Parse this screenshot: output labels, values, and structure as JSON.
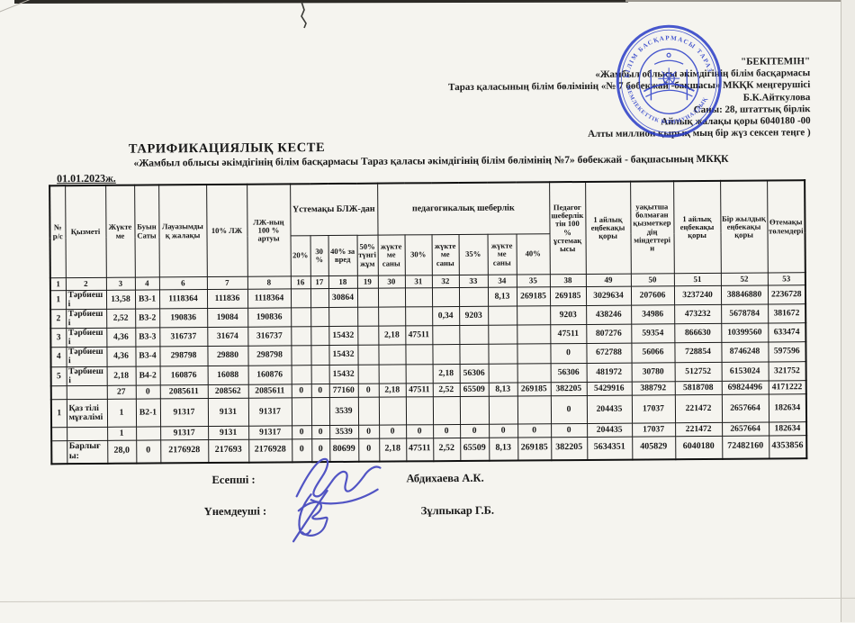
{
  "approval": {
    "lines": [
      "\"БЕКІТЕМІН\"",
      "«Жамбыл облысы әкімдігінің білім басқармасы",
      "Тараз қаласының  білім бөлімінің «№ 7 бөбекжай -бақшасы»  МКҚК меңгерушісі",
      "Б.К.Айткулова",
      "Саны: 28,    штаттық бірлік",
      "Айлық жалақы қоры 6040180  -00",
      "Алты миллион қырық мың бір жүз сексен теңге  )"
    ]
  },
  "stamp": {
    "ring_text_top": "БІЛІМ БАСҚАРМАСЫ ТАРАЗ",
    "ring_text_bottom": "МЕМЛЕКЕТТІК КОММУНАЛДЫҚ",
    "color": "#2b3ec8"
  },
  "title": "ТАРИФИКАЦИЯЛЫҚ КЕСТЕ",
  "subtitle": "«Жамбыл облысы әкімдігінің білім басқармасы  Тараз қаласы әкімдігінің білім бөлімінің №7» бөбекжай - бақшасының МКҚК",
  "date": "01.01.2023ж.",
  "table": {
    "group_headers": {
      "num": "№ р/с",
      "position": "Қызметі",
      "load": "Жүктеме",
      "category": "Буын Саты",
      "salary": "Лауазымдық жалақы",
      "ten_pct": "10% ЛЖ",
      "lj_100": "ЛЖ-ның 100 % артуы",
      "ustemaky": "Үстемақы БЛЖ-дан",
      "ped_mastery": "педагогикалық шеберлік",
      "ped_100": "Педагог шеберліктін 100 % ұстемақысы",
      "month_fund_1": "1 айлық еңбекақы қоры",
      "temp_absent": "уақытша болмаған қызметкердің міндеттерін",
      "month_fund_2": "1 айлық еңбекақы қоры",
      "year_fund": "Бір жылдық еңбекақы қоры",
      "compensation": "Өтемақы төлемдері"
    },
    "sub_headers": [
      "20%",
      "30%",
      "40% за вред",
      "50% түнгі жұм",
      "жүктеме саны",
      "30%",
      "жүктеме саны",
      "35%",
      "жүктеме саны",
      "40%"
    ],
    "col_numbers": [
      "1",
      "2",
      "3",
      "4",
      "6",
      "7",
      "8",
      "16",
      "17",
      "18",
      "19",
      "30",
      "31",
      "32",
      "33",
      "34",
      "35",
      "38",
      "49",
      "50",
      "51",
      "52",
      "53"
    ],
    "rows": [
      {
        "type": "data",
        "cells": [
          "1",
          "Тәрбиеші",
          "13,58",
          "В3-1",
          "1118364",
          "111836",
          "1118364",
          "",
          "",
          "30864",
          "",
          "",
          "",
          "",
          "",
          "8,13",
          "269185",
          "269185",
          "3029634",
          "207606",
          "3237240",
          "38846880",
          "2236728"
        ]
      },
      {
        "type": "data",
        "cells": [
          "2",
          "Тәрбиеші",
          "2,52",
          "В3-2",
          "190836",
          "19084",
          "190836",
          "",
          "",
          "",
          "",
          "",
          "",
          "0,34",
          "9203",
          "",
          "",
          "9203",
          "438246",
          "34986",
          "473232",
          "5678784",
          "381672"
        ]
      },
      {
        "type": "data",
        "cells": [
          "3",
          "Тәрбиеші",
          "4,36",
          "В3-3",
          "316737",
          "31674",
          "316737",
          "",
          "",
          "15432",
          "",
          "2,18",
          "47511",
          "",
          "",
          "",
          "",
          "47511",
          "807276",
          "59354",
          "866630",
          "10399560",
          "633474"
        ]
      },
      {
        "type": "data",
        "cells": [
          "4",
          "Тәрбиеші",
          "4,36",
          "В3-4",
          "298798",
          "29880",
          "298798",
          "",
          "",
          "15432",
          "",
          "",
          "",
          "",
          "",
          "",
          "",
          "0",
          "672788",
          "56066",
          "728854",
          "8746248",
          "597596"
        ]
      },
      {
        "type": "data",
        "cells": [
          "5",
          "Тәрбиеші",
          "2,18",
          "В4-2",
          "160876",
          "16088",
          "160876",
          "",
          "",
          "15432",
          "",
          "",
          "",
          "2,18",
          "56306",
          "",
          "",
          "56306",
          "481972",
          "30780",
          "512752",
          "6153024",
          "321752"
        ]
      },
      {
        "type": "subtotal",
        "cells": [
          "",
          "",
          "27",
          "0",
          "2085611",
          "208562",
          "2085611",
          "0",
          "0",
          "77160",
          "0",
          "2,18",
          "47511",
          "2,52",
          "65509",
          "8,13",
          "269185",
          "382205",
          "5429916",
          "388792",
          "5818708",
          "69824496",
          "4171222"
        ]
      },
      {
        "type": "kaz",
        "cells": [
          "1",
          "Қаз тілі мұғалімі",
          "1",
          "В2-1",
          "91317",
          "9131",
          "91317",
          "",
          "",
          "3539",
          "",
          "",
          "",
          "",
          "",
          "",
          "",
          "0",
          "204435",
          "17037",
          "221472",
          "2657664",
          "182634"
        ]
      },
      {
        "type": "subtotal",
        "cells": [
          "",
          "",
          "1",
          "",
          "91317",
          "9131",
          "91317",
          "0",
          "0",
          "3539",
          "0",
          "0",
          "0",
          "0",
          "0",
          "0",
          "0",
          "0",
          "204435",
          "17037",
          "221472",
          "2657664",
          "182634"
        ]
      },
      {
        "type": "total",
        "cells": [
          "",
          "Барлығы:",
          "28,0",
          "0",
          "2176928",
          "217693",
          "2176928",
          "0",
          "0",
          "80699",
          "0",
          "2,18",
          "47511",
          "2,52",
          "65509",
          "8,13",
          "269185",
          "382205",
          "5634351",
          "405829",
          "6040180",
          "72482160",
          "4353856"
        ]
      }
    ]
  },
  "footer": {
    "accountant_label": "Есепші :",
    "accountant_name": "Абдихаева А.К.",
    "economist_label": "Үнемдеуші :",
    "economist_name": "Зұлпыкар Г.Б."
  }
}
